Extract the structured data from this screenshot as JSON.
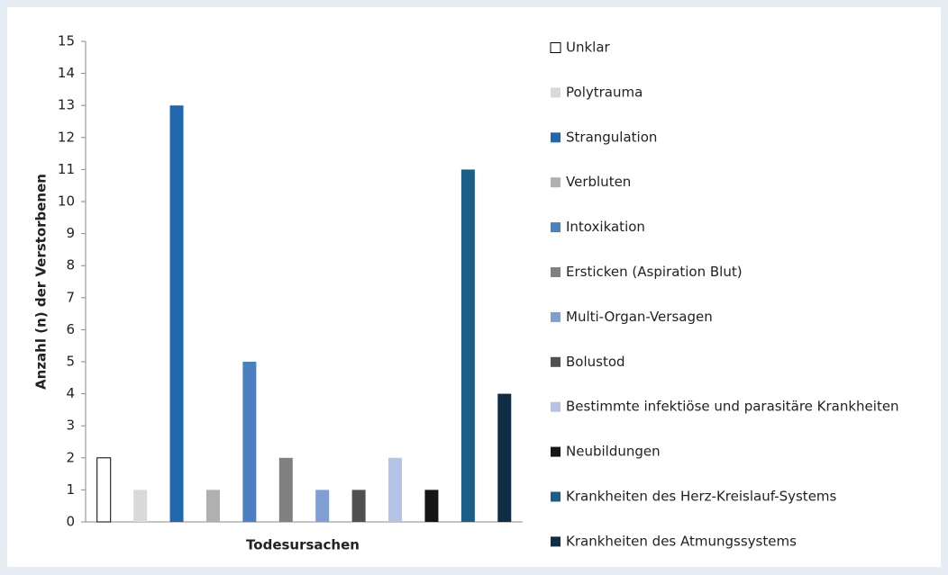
{
  "chart_data": {
    "type": "bar",
    "x_label": "Todesursachen",
    "y_label": "Anzahl (n) der Verstorbenen",
    "ylim": [
      0,
      15
    ],
    "yticks": [
      0,
      1,
      2,
      3,
      4,
      5,
      6,
      7,
      8,
      9,
      10,
      11,
      12,
      13,
      14,
      15
    ],
    "grid": false,
    "legend": "right",
    "series": [
      {
        "name": "Unklar",
        "color": "#ffffff",
        "edge_color": "#000000",
        "values": [
          2
        ]
      },
      {
        "name": "Polytrauma",
        "color": "#d9d9d9",
        "values": [
          1
        ]
      },
      {
        "name": "Strangulation",
        "color": "#1f68b0",
        "values": [
          13
        ]
      },
      {
        "name": "Verbluten",
        "color": "#b0b0b0",
        "values": [
          1
        ]
      },
      {
        "name": "Intoxikation",
        "color": "#4a7fc1",
        "values": [
          5
        ]
      },
      {
        "name": "Ersticken (Aspiration Blut)",
        "color": "#808080",
        "values": [
          2
        ]
      },
      {
        "name": "Multi-Organ-Versagen",
        "color": "#7f9fd4",
        "values": [
          1
        ]
      },
      {
        "name": "Bolustod",
        "color": "#505050",
        "values": [
          1
        ]
      },
      {
        "name": "Bestimmte infektiöse und parasitäre Krankheiten",
        "color": "#b4c3e6",
        "values": [
          2
        ]
      },
      {
        "name": "Neubildungen",
        "color": "#151515",
        "values": [
          1
        ]
      },
      {
        "name": "Krankheiten des Herz-Kreislauf-Systems",
        "color": "#1a5f88",
        "values": [
          11
        ]
      },
      {
        "name": "Krankheiten des Atmungssystems",
        "color": "#102d44",
        "values": [
          4
        ]
      }
    ]
  }
}
